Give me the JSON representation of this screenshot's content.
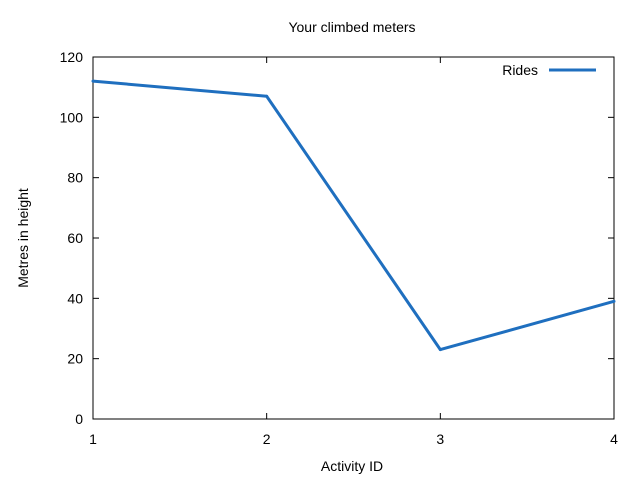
{
  "chart_data": {
    "type": "line",
    "title": "Your climbed meters",
    "xlabel": "Activity ID",
    "ylabel": "Metres in height",
    "x": [
      1,
      2,
      3,
      4
    ],
    "xticks": [
      "1",
      "2",
      "3",
      "4"
    ],
    "yticks": [
      "0",
      "20",
      "40",
      "60",
      "80",
      "100",
      "120"
    ],
    "xlim": [
      1,
      4
    ],
    "ylim": [
      0,
      120
    ],
    "grid": false,
    "legend_position": "top-right",
    "series": [
      {
        "name": "Rides",
        "color": "#1f6fbf",
        "values": [
          112,
          107,
          23,
          39
        ]
      }
    ]
  }
}
